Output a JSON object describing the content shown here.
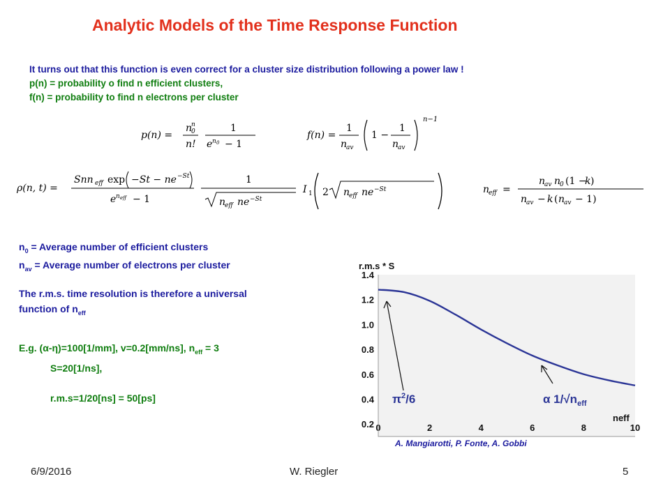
{
  "title": "Analytic Models of the Time Response Function",
  "intro": {
    "line1": "It turns out that this function is even correct for a cluster size distribution following a power law !",
    "line2": "p(n) = probability o find n efficient clusters,",
    "line3": "f(n)  = probability to  find n electrons per cluster"
  },
  "definitions": {
    "n0_sym": "n",
    "n0_sub": "0",
    "n0_text": " = Average number of efficient clusters",
    "nav_sym": "n",
    "nav_sub": "av",
    "nav_text": " = Average number of electrons per cluster"
  },
  "resolution": {
    "line1": "The r.m.s. time resolution is therefore a universal",
    "line2": "function of n",
    "line2_sub": "eff"
  },
  "example": {
    "line1_a": "E.g.  (α-η)=100[1/mm],  v=0.2[mm/ns], n",
    "line1_sub": "eff",
    "line1_b": " = 3",
    "line2": "S=20[1/ns],",
    "line3": "r.m.s=1/20[ns] = 50[ps]"
  },
  "chart_data": {
    "type": "line",
    "ylabel": "r.m.s * S",
    "xlabel": "neff",
    "xlim": [
      0,
      10
    ],
    "ylim": [
      0.1,
      1.4
    ],
    "xticks": [
      "0",
      "2",
      "4",
      "6",
      "8",
      "10"
    ],
    "yticks": [
      "0.2",
      "0.4",
      "0.6",
      "0.8",
      "1.0",
      "1.2",
      "1.4"
    ],
    "x": [
      0,
      1,
      2,
      3,
      4,
      5,
      6,
      7,
      8,
      9,
      10
    ],
    "series": [
      {
        "values": [
          1.28,
          1.26,
          1.19,
          1.08,
          0.96,
          0.85,
          0.75,
          0.67,
          0.6,
          0.55,
          0.51
        ],
        "color": "#2b3596"
      }
    ],
    "annotations": [
      {
        "text": "π²/6",
        "color": "#2b3596"
      },
      {
        "text": "α 1/√n",
        "sub": "eff",
        "color": "#2b3596"
      }
    ],
    "credit": "A. Mangiarotti, P. Fonte, A. Gobbi"
  },
  "footer": {
    "date": "6/9/2016",
    "author": "W. Riegler",
    "page": "5"
  }
}
